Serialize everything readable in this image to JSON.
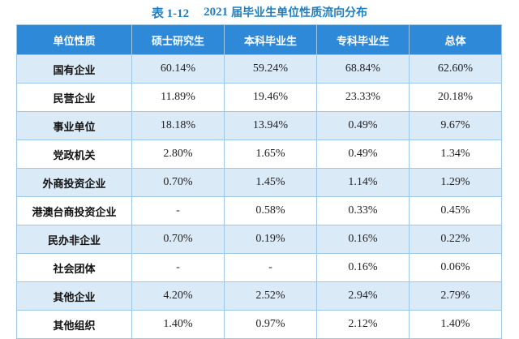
{
  "caption": {
    "prefix": "表 1-12",
    "year": "2021",
    "title": "届毕业生单位性质流向分布"
  },
  "header": [
    "单位性质",
    "硕士研究生",
    "本科毕业生",
    "专科毕业生",
    "总体"
  ],
  "rows": [
    {
      "label": "国有企业",
      "values": [
        "60.14%",
        "59.24%",
        "68.84%",
        "62.60%"
      ]
    },
    {
      "label": "民营企业",
      "values": [
        "11.89%",
        "19.46%",
        "23.33%",
        "20.18%"
      ]
    },
    {
      "label": "事业单位",
      "values": [
        "18.18%",
        "13.94%",
        "0.49%",
        "9.67%"
      ]
    },
    {
      "label": "党政机关",
      "values": [
        "2.80%",
        "1.65%",
        "0.49%",
        "1.34%"
      ]
    },
    {
      "label": "外商投资企业",
      "values": [
        "0.70%",
        "1.45%",
        "1.14%",
        "1.29%"
      ]
    },
    {
      "label": "港澳台商投资企业",
      "values": [
        "-",
        "0.58%",
        "0.33%",
        "0.45%"
      ]
    },
    {
      "label": "民办非企业",
      "values": [
        "0.70%",
        "0.19%",
        "0.16%",
        "0.22%"
      ]
    },
    {
      "label": "社会团体",
      "values": [
        "-",
        "-",
        "0.16%",
        "0.06%"
      ]
    },
    {
      "label": "其他企业",
      "values": [
        "4.20%",
        "2.52%",
        "2.94%",
        "2.79%"
      ]
    },
    {
      "label": "其他组织",
      "values": [
        "1.40%",
        "0.97%",
        "2.12%",
        "1.40%"
      ]
    }
  ]
}
